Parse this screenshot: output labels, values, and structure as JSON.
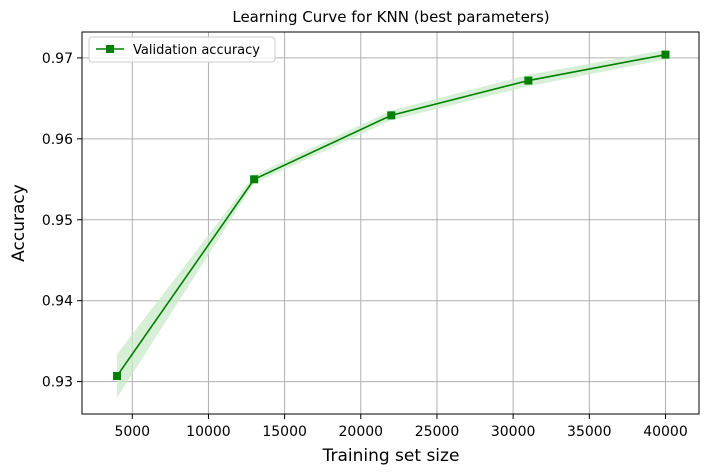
{
  "chart_data": {
    "type": "line",
    "title": "Learning Curve for KNN (best parameters)",
    "xlabel": "Training set size",
    "ylabel": "Accuracy",
    "xlim": [
      1700,
      42200
    ],
    "ylim": [
      0.926,
      0.9732
    ],
    "xticks": [
      5000,
      10000,
      15000,
      20000,
      25000,
      30000,
      35000,
      40000
    ],
    "xtick_labels": [
      "5000",
      "10000",
      "15000",
      "20000",
      "25000",
      "30000",
      "35000",
      "40000"
    ],
    "yticks": [
      0.93,
      0.94,
      0.95,
      0.96,
      0.97
    ],
    "ytick_labels": [
      "0.93",
      "0.94",
      "0.95",
      "0.96",
      "0.97"
    ],
    "grid": true,
    "legend_position": "top-left",
    "series": [
      {
        "name": "Validation accuracy",
        "color": "#008000",
        "band_color": "#c8eac8",
        "marker": "square",
        "x": [
          4000,
          13000,
          22000,
          31000,
          40000
        ],
        "values": [
          0.9307,
          0.955,
          0.9629,
          0.9672,
          0.9704
        ],
        "band_lower": [
          0.928,
          0.9545,
          0.9623,
          0.9665,
          0.9698
        ],
        "band_upper": [
          0.9334,
          0.9555,
          0.9635,
          0.9679,
          0.971
        ]
      }
    ]
  }
}
